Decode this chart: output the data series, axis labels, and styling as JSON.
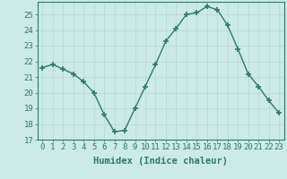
{
  "x": [
    0,
    1,
    2,
    3,
    4,
    5,
    6,
    7,
    8,
    9,
    10,
    11,
    12,
    13,
    14,
    15,
    16,
    17,
    18,
    19,
    20,
    21,
    22,
    23
  ],
  "y": [
    21.6,
    21.8,
    21.5,
    21.2,
    20.7,
    20.0,
    18.6,
    17.5,
    17.6,
    19.0,
    20.4,
    21.8,
    23.3,
    24.1,
    25.0,
    25.1,
    25.5,
    25.3,
    24.3,
    22.8,
    21.2,
    20.4,
    19.5,
    18.7
  ],
  "line_color": "#2d7a68",
  "marker": "+",
  "marker_size": 5,
  "bg_color": "#cceae8",
  "grid_color": "#b8d8d5",
  "axis_color": "#2d7a68",
  "xlabel": "Humidex (Indice chaleur)",
  "xlim": [
    -0.5,
    23.5
  ],
  "ylim": [
    17,
    25.8
  ],
  "yticks": [
    17,
    18,
    19,
    20,
    21,
    22,
    23,
    24,
    25
  ],
  "xticks": [
    0,
    1,
    2,
    3,
    4,
    5,
    6,
    7,
    8,
    9,
    10,
    11,
    12,
    13,
    14,
    15,
    16,
    17,
    18,
    19,
    20,
    21,
    22,
    23
  ],
  "tick_fontsize": 6.5,
  "label_fontsize": 7.5
}
